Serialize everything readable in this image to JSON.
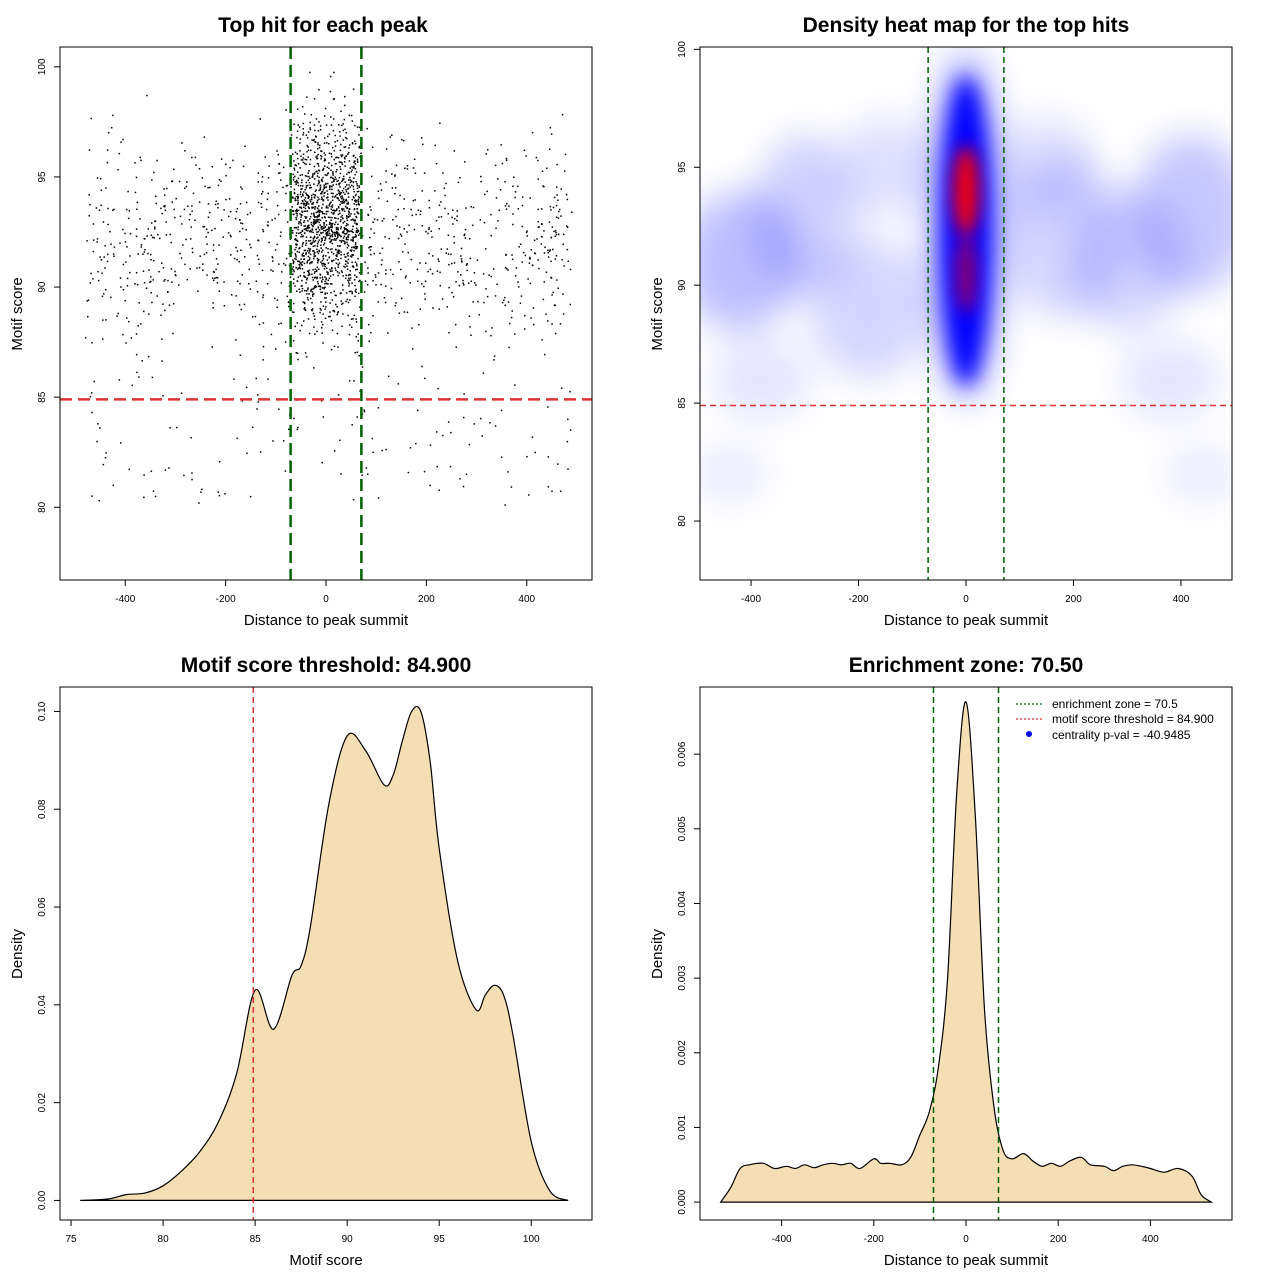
{
  "chart_data": [
    {
      "type": "scatter",
      "title": "Top hit for each peak",
      "xlabel": "Distance to peak summit",
      "ylabel": "Motif score",
      "xlim": [
        -530,
        530
      ],
      "ylim": [
        76.7,
        100.9
      ],
      "xticks": [
        -400,
        -200,
        0,
        200,
        400
      ],
      "yticks": [
        80,
        85,
        90,
        95,
        100
      ],
      "threshold": 84.9,
      "zone": [
        -70.5,
        70.5
      ],
      "sample_note": "approximately 2400 points: dense central column between -70 and 70 with scores mostly 85-100, sparse background spread over -500..500",
      "threshold_color": "#dd3333",
      "zone_color": "#006400"
    },
    {
      "type": "heatmap",
      "title": "Density heat map for the top hits",
      "xlabel": "Distance to peak summit",
      "ylabel": "Motif score",
      "xlim": [
        -495,
        495
      ],
      "ylim": [
        77.5,
        100.1
      ],
      "xticks": [
        -400,
        -200,
        0,
        200,
        400
      ],
      "yticks": [
        80,
        85,
        90,
        95,
        100
      ],
      "threshold": 84.9,
      "zone": [
        -70.5,
        70.5
      ],
      "peak": {
        "x": 0,
        "y": 94
      },
      "colors": [
        "#ffffff",
        "#0000ff",
        "#ff0000"
      ]
    },
    {
      "type": "area",
      "title": "Motif score threshold: 84.900",
      "xlabel": "Motif score",
      "ylabel": "Density",
      "xlim": [
        74.4,
        103.3
      ],
      "ylim": [
        -0.004,
        0.105
      ],
      "xticks": [
        75,
        80,
        85,
        90,
        95,
        100
      ],
      "yticks": [
        0.0,
        0.02,
        0.04,
        0.06,
        0.08,
        0.1
      ],
      "ytick_labels": [
        "0.00",
        "0.02",
        "0.04",
        "0.06",
        "0.08",
        "0.10"
      ],
      "threshold": 84.9,
      "x": [
        75.5,
        77,
        78,
        79,
        80,
        81,
        82,
        83,
        84,
        85,
        86,
        87,
        87.5,
        88,
        89,
        90,
        91,
        92,
        92.5,
        93,
        93.5,
        94,
        94.5,
        95,
        96,
        97,
        97.5,
        98,
        98.5,
        99,
        100,
        101,
        102
      ],
      "y": [
        0.0,
        0.0003,
        0.0012,
        0.0015,
        0.003,
        0.006,
        0.01,
        0.016,
        0.026,
        0.043,
        0.035,
        0.046,
        0.048,
        0.056,
        0.081,
        0.095,
        0.092,
        0.085,
        0.087,
        0.094,
        0.1,
        0.1,
        0.09,
        0.072,
        0.049,
        0.039,
        0.042,
        0.044,
        0.042,
        0.034,
        0.012,
        0.002,
        0.0
      ],
      "fill": "#f5deb3",
      "threshold_color": "#dd3333"
    },
    {
      "type": "area",
      "title": "Enrichment zone: 70.50",
      "xlabel": "Distance to peak summit",
      "ylabel": "Density",
      "xlim": [
        -577,
        577
      ],
      "ylim": [
        -0.00024,
        0.0069
      ],
      "xticks": [
        -400,
        -200,
        0,
        200,
        400
      ],
      "yticks": [
        0.0,
        0.001,
        0.002,
        0.003,
        0.004,
        0.005,
        0.006
      ],
      "ytick_labels": [
        "0.000",
        "0.001",
        "0.002",
        "0.003",
        "0.004",
        "0.005",
        "0.006"
      ],
      "zone": [
        -70.5,
        70.5
      ],
      "x": [
        -532,
        -510,
        -490,
        -470,
        -440,
        -415,
        -390,
        -370,
        -350,
        -330,
        -310,
        -290,
        -270,
        -250,
        -230,
        -200,
        -185,
        -165,
        -140,
        -120,
        -100,
        -80,
        -60,
        -40,
        -20,
        0,
        20,
        40,
        60,
        80,
        100,
        125,
        145,
        165,
        185,
        205,
        225,
        250,
        270,
        300,
        320,
        340,
        360,
        380,
        400,
        430,
        460,
        490,
        510,
        532
      ],
      "y": [
        0.0,
        0.0002,
        0.00045,
        0.0005,
        0.00052,
        0.00045,
        0.00048,
        0.00045,
        0.0005,
        0.00046,
        0.0005,
        0.00052,
        0.0005,
        0.00052,
        0.00045,
        0.00058,
        0.00052,
        0.00052,
        0.0005,
        0.0006,
        0.0009,
        0.0012,
        0.0018,
        0.003,
        0.0055,
        0.0067,
        0.0052,
        0.0026,
        0.0013,
        0.0007,
        0.00058,
        0.00065,
        0.00055,
        0.00048,
        0.00052,
        0.00048,
        0.00055,
        0.0006,
        0.0005,
        0.00048,
        0.00042,
        0.00048,
        0.0005,
        0.00048,
        0.00045,
        0.0004,
        0.00045,
        0.00035,
        0.0001,
        0.0
      ],
      "fill": "#f5deb3",
      "zone_color": "#006400",
      "legend": [
        {
          "label": "enrichment zone = 70.5",
          "color": "#006400",
          "style": "dotted"
        },
        {
          "label": "motif score threshold = 84.900",
          "color": "#dd3333",
          "style": "dotted"
        },
        {
          "label": "centrality p-val = -40.9485",
          "color": "#0000ff",
          "style": "dot"
        }
      ]
    }
  ]
}
